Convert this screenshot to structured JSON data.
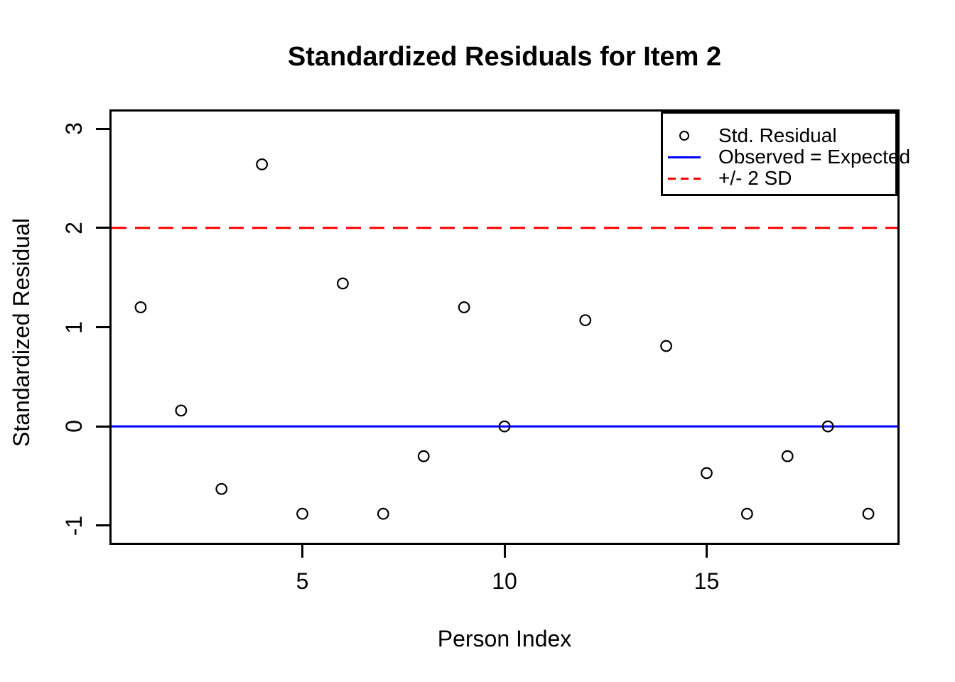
{
  "chart_data": {
    "type": "scatter",
    "title": "Standardized Residuals for Item 2",
    "xlabel": "Person Index",
    "ylabel": "Standardized Residual",
    "x_ticks": [
      5,
      10,
      15
    ],
    "y_ticks": [
      3,
      2,
      1,
      0,
      -1
    ],
    "xlim": [
      0.28,
      19.72
    ],
    "ylim": [
      -1.172,
      3.172
    ],
    "grid": false,
    "legend_position": "topright",
    "points_series": {
      "name": "Std. Residual",
      "marker": "open-circle",
      "color": "#000000",
      "points": [
        [
          1,
          1.2
        ],
        [
          2,
          0.16
        ],
        [
          3,
          -0.63
        ],
        [
          4,
          2.64
        ],
        [
          5,
          -0.88
        ],
        [
          6,
          1.44
        ],
        [
          7,
          -0.88
        ],
        [
          8,
          -0.3
        ],
        [
          9,
          1.2
        ],
        [
          10,
          0
        ],
        [
          12,
          1.07
        ],
        [
          14,
          0.81
        ],
        [
          15,
          -0.47
        ],
        [
          16,
          -0.88
        ],
        [
          17,
          -0.3
        ],
        [
          18,
          0
        ],
        [
          19,
          -0.88
        ]
      ]
    },
    "reference_lines": [
      {
        "name": "Observed = Expected",
        "y": 0,
        "color": "#0000ff",
        "style": "solid"
      },
      {
        "name": "+/- 2 SD",
        "y": 2,
        "color": "#ff0000",
        "style": "dashed"
      }
    ],
    "legend": [
      {
        "label": "Std. Residual",
        "symbol": "open-circle",
        "color": "#000000"
      },
      {
        "label": "Observed = Expected",
        "symbol": "solid-line",
        "color": "#0000ff"
      },
      {
        "label": "+/- 2 SD",
        "symbol": "dashed-line",
        "color": "#ff0000"
      }
    ]
  }
}
